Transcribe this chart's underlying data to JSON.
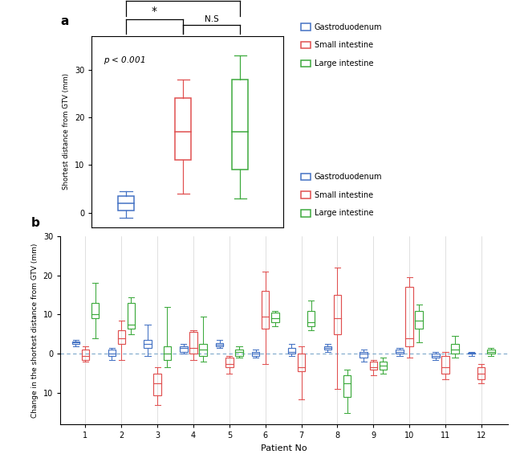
{
  "panel_a": {
    "blue": {
      "wl": -1.0,
      "q1": 0.5,
      "med": 2.0,
      "q3": 3.5,
      "wh": 4.5
    },
    "red": {
      "wl": 4.0,
      "q1": 11.0,
      "med": 17.0,
      "q3": 24.0,
      "wh": 28.0
    },
    "green": {
      "wl": 3.0,
      "q1": 9.0,
      "med": 17.0,
      "q3": 28.0,
      "wh": 33.0
    }
  },
  "panel_b_blue": [
    {
      "wl": 2.0,
      "q1": 2.5,
      "med": 3.0,
      "q3": 3.2,
      "wh": 3.5
    },
    {
      "wl": -1.5,
      "q1": -0.5,
      "med": 0.0,
      "q3": 1.0,
      "wh": 1.5
    },
    {
      "wl": -0.5,
      "q1": 1.5,
      "med": 2.5,
      "q3": 3.5,
      "wh": 7.5
    },
    {
      "wl": 0.0,
      "q1": 0.5,
      "med": 1.5,
      "q3": 2.0,
      "wh": 2.5
    },
    {
      "wl": 1.5,
      "q1": 2.0,
      "med": 2.3,
      "q3": 2.8,
      "wh": 3.5
    },
    {
      "wl": -1.0,
      "q1": -0.5,
      "med": 0.0,
      "q3": 0.5,
      "wh": 1.0
    },
    {
      "wl": -0.5,
      "q1": 0.0,
      "med": 0.5,
      "q3": 1.5,
      "wh": 2.5
    },
    {
      "wl": 0.5,
      "q1": 1.0,
      "med": 1.5,
      "q3": 2.0,
      "wh": 2.5
    },
    {
      "wl": -2.0,
      "q1": -1.0,
      "med": 0.0,
      "q3": 0.5,
      "wh": 1.0
    },
    {
      "wl": -0.5,
      "q1": 0.0,
      "med": 0.5,
      "q3": 1.0,
      "wh": 1.5
    },
    {
      "wl": -1.5,
      "q1": -1.0,
      "med": -0.5,
      "q3": 0.0,
      "wh": 0.5
    },
    {
      "wl": -0.5,
      "q1": 0.0,
      "med": 0.0,
      "q3": 0.3,
      "wh": 0.5
    }
  ],
  "panel_b_red": [
    {
      "wl": -2.0,
      "q1": -1.5,
      "med": -0.5,
      "q3": 1.0,
      "wh": 2.0
    },
    {
      "wl": -1.5,
      "q1": 2.5,
      "med": 4.0,
      "q3": 6.0,
      "wh": 8.5
    },
    {
      "wl": -13.0,
      "q1": -10.5,
      "med": -7.5,
      "q3": -5.0,
      "wh": -3.5
    },
    {
      "wl": -1.5,
      "q1": 0.0,
      "med": 1.5,
      "q3": 5.5,
      "wh": 6.0
    },
    {
      "wl": -5.0,
      "q1": -3.5,
      "med": -2.5,
      "q3": -1.0,
      "wh": -0.5
    },
    {
      "wl": -2.5,
      "q1": 6.5,
      "med": 9.5,
      "q3": 16.0,
      "wh": 21.0
    },
    {
      "wl": -11.5,
      "q1": -4.5,
      "med": -3.5,
      "q3": 0.0,
      "wh": 2.0
    },
    {
      "wl": -9.0,
      "q1": 5.0,
      "med": 9.0,
      "q3": 15.0,
      "wh": 22.0
    },
    {
      "wl": -5.5,
      "q1": -4.0,
      "med": -3.5,
      "q3": -2.0,
      "wh": -1.5
    },
    {
      "wl": -1.0,
      "q1": 2.0,
      "med": 4.0,
      "q3": 17.0,
      "wh": 19.5
    },
    {
      "wl": -6.5,
      "q1": -5.0,
      "med": -3.5,
      "q3": -0.5,
      "wh": 0.5
    },
    {
      "wl": -7.5,
      "q1": -6.5,
      "med": -5.0,
      "q3": -3.5,
      "wh": -2.5
    }
  ],
  "panel_b_green": [
    {
      "wl": 4.0,
      "q1": 9.0,
      "med": 10.0,
      "q3": 13.0,
      "wh": 18.0
    },
    {
      "wl": 5.0,
      "q1": 6.5,
      "med": 7.5,
      "q3": 13.0,
      "wh": 14.5
    },
    {
      "wl": -3.5,
      "q1": -1.5,
      "med": 0.0,
      "q3": 2.0,
      "wh": 12.0
    },
    {
      "wl": -2.0,
      "q1": -0.5,
      "med": 1.0,
      "q3": 2.5,
      "wh": 9.5
    },
    {
      "wl": -1.0,
      "q1": -0.5,
      "med": 0.5,
      "q3": 1.0,
      "wh": 2.0
    },
    {
      "wl": 7.0,
      "q1": 8.0,
      "med": 9.0,
      "q3": 10.5,
      "wh": 11.0
    },
    {
      "wl": 6.0,
      "q1": 7.0,
      "med": 8.0,
      "q3": 11.0,
      "wh": 13.5
    },
    {
      "wl": -15.0,
      "q1": -11.0,
      "med": -7.5,
      "q3": -5.5,
      "wh": -4.0
    },
    {
      "wl": -5.0,
      "q1": -4.0,
      "med": -3.0,
      "q3": -2.0,
      "wh": -1.0
    },
    {
      "wl": 3.0,
      "q1": 6.5,
      "med": 8.5,
      "q3": 11.0,
      "wh": 12.5
    },
    {
      "wl": -1.0,
      "q1": 0.0,
      "med": 1.0,
      "q3": 2.5,
      "wh": 4.5
    },
    {
      "wl": -0.5,
      "q1": 0.0,
      "med": 0.5,
      "q3": 1.0,
      "wh": 1.5
    }
  ],
  "patients": [
    1,
    2,
    3,
    4,
    5,
    6,
    7,
    8,
    9,
    10,
    11,
    12
  ],
  "col_blue": "#4472C4",
  "col_red": "#E05050",
  "col_green": "#3DAA3D",
  "legend_labels": [
    "Gastroduodenum",
    "Small intestine",
    "Large intestine"
  ],
  "panel_a_ylabel": "Shortest distance from GTV (mm)",
  "panel_b_ylabel": "Change in the shortest distance from GTV (mm)",
  "panel_b_xlabel": "Patient No",
  "panel_a_ptext": "p < 0.001",
  "label_a": "a",
  "label_b": "b"
}
